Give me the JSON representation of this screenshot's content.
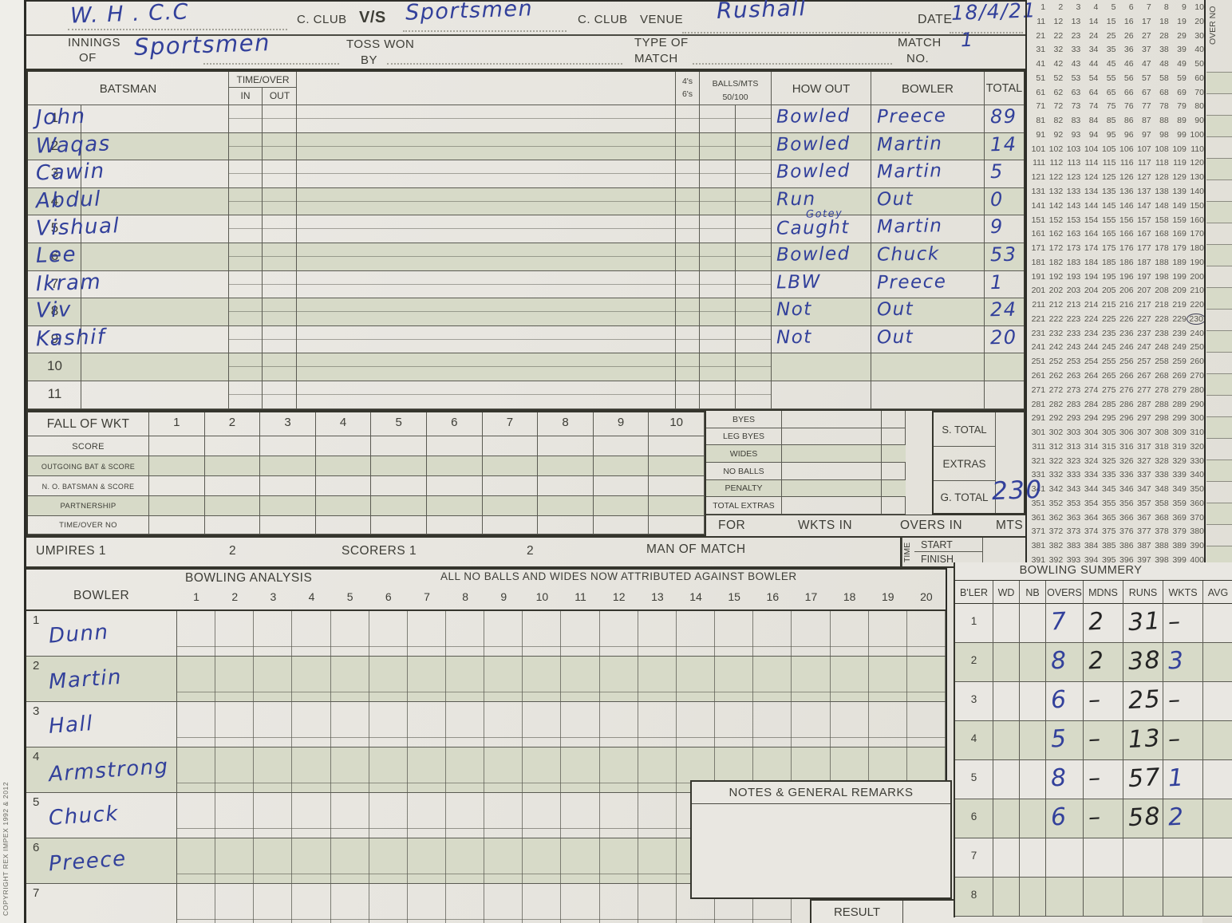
{
  "header": {
    "club_home": "W. H . C.C",
    "c_club": "C. CLUB",
    "vs": "V/S",
    "club_away": "Sportsmen",
    "venue_label": "VENUE",
    "venue": "Rushall",
    "date_label": "DATE",
    "date": "18/4/21",
    "innings_label_1": "INNINGS",
    "innings_label_2": "OF",
    "innings_of": "Sportsmen",
    "toss_label_1": "TOSS WON",
    "toss_label_2": "BY",
    "type_label_1": "TYPE OF",
    "type_label_2": "MATCH",
    "match_no_label_1": "MATCH",
    "match_no_label_2": "NO.",
    "match_no": "1"
  },
  "batting": {
    "col_batsman": "BATSMAN",
    "col_time_over": "TIME/OVER",
    "col_in": "IN",
    "col_out": "OUT",
    "col_4s": "4's",
    "col_6s": "6's",
    "col_balls_1": "BALLS/MTS",
    "col_balls_2": "50/100",
    "col_how_out": "HOW OUT",
    "col_bowler": "BOWLER",
    "col_total": "TOTAL",
    "rows": [
      {
        "no": "1",
        "name": "John",
        "how_out": "Bowled",
        "how_out_note": "",
        "bowler": "Preece",
        "total": "89"
      },
      {
        "no": "2",
        "name": "Waqas",
        "how_out": "Bowled",
        "how_out_note": "",
        "bowler": "Martin",
        "total": "14"
      },
      {
        "no": "3",
        "name": "Cawin",
        "how_out": "Bowled",
        "how_out_note": "",
        "bowler": "Martin",
        "total": "5"
      },
      {
        "no": "4",
        "name": "Abdul",
        "how_out": "Run",
        "how_out_note": "",
        "bowler": "Out",
        "total": "0"
      },
      {
        "no": "5",
        "name": "Vishual",
        "how_out": "Caught",
        "how_out_note": "Gotey",
        "bowler": "Martin",
        "total": "9"
      },
      {
        "no": "6",
        "name": "Lee",
        "how_out": "Bowled",
        "how_out_note": "",
        "bowler": "Chuck",
        "total": "53"
      },
      {
        "no": "7",
        "name": "Ikram",
        "how_out": "LBW",
        "how_out_note": "",
        "bowler": "Preece",
        "total": "1"
      },
      {
        "no": "8",
        "name": "Viv",
        "how_out": "Not",
        "how_out_note": "",
        "bowler": "Out",
        "total": "24"
      },
      {
        "no": "9",
        "name": "Kashif",
        "how_out": "Not",
        "how_out_note": "",
        "bowler": "Out",
        "total": "20"
      },
      {
        "no": "10",
        "name": "",
        "how_out": "",
        "how_out_note": "",
        "bowler": "",
        "total": ""
      },
      {
        "no": "11",
        "name": "",
        "how_out": "",
        "how_out_note": "",
        "bowler": "",
        "total": ""
      }
    ]
  },
  "fall_of_wkt": {
    "title": "FALL OF WKT",
    "columns": [
      "1",
      "2",
      "3",
      "4",
      "5",
      "6",
      "7",
      "8",
      "9",
      "10"
    ],
    "row_labels": [
      "SCORE",
      "OUTGOING BAT & SCORE",
      "N. O. BATSMAN & SCORE",
      "PARTNERSHIP",
      "TIME/OVER NO"
    ]
  },
  "extras": {
    "rows": [
      "BYES",
      "LEG BYES",
      "WIDES",
      "NO BALLS",
      "PENALTY",
      "TOTAL EXTRAS"
    ]
  },
  "totals": {
    "s_total_label": "S. TOTAL",
    "extras_label": "EXTRAS",
    "g_total_label": "G. TOTAL",
    "g_total_value": "230"
  },
  "for_row": {
    "for_label": "FOR",
    "wkts_in": "WKTS IN",
    "overs_in": "OVERS IN",
    "mts": "MTS"
  },
  "officials": {
    "umpires": "UMPIRES 1",
    "umpire2": "2",
    "scorers": "SCORERS 1",
    "scorer2": "2",
    "man_of_match": "MAN OF MATCH",
    "time": "TIME",
    "start": "START",
    "finish": "FINISH"
  },
  "bowling": {
    "title": "BOWLING ANALYSIS",
    "note": "ALL NO BALLS AND WIDES NOW ATTRIBUTED AGAINST BOWLER",
    "bowler_label": "BOWLER",
    "over_columns": [
      "1",
      "2",
      "3",
      "4",
      "5",
      "6",
      "7",
      "8",
      "9",
      "10",
      "11",
      "12",
      "13",
      "14",
      "15",
      "16",
      "17",
      "18",
      "19",
      "20"
    ],
    "rows": [
      {
        "no": "1",
        "name": "Dunn"
      },
      {
        "no": "2",
        "name": "Martin"
      },
      {
        "no": "3",
        "name": "Hall"
      },
      {
        "no": "4",
        "name": "Armstrong"
      },
      {
        "no": "5",
        "name": "Chuck"
      },
      {
        "no": "6",
        "name": "Preece"
      },
      {
        "no": "7",
        "name": ""
      }
    ]
  },
  "bowling_summary": {
    "title": "BOWLING SUMMERY",
    "headers": [
      "B'LER",
      "WD",
      "NB",
      "OVERS",
      "MDNS",
      "RUNS",
      "WKTS",
      "AVG"
    ],
    "rows": [
      {
        "no": "1",
        "wd": "",
        "nb": "",
        "overs": "7",
        "mdns": "2",
        "runs": "31",
        "wkts": "–",
        "avg": ""
      },
      {
        "no": "2",
        "wd": "",
        "nb": "",
        "overs": "8",
        "mdns": "2",
        "runs": "38",
        "wkts": "3",
        "avg": ""
      },
      {
        "no": "3",
        "wd": "",
        "nb": "",
        "overs": "6",
        "mdns": "–",
        "runs": "25",
        "wkts": "–",
        "avg": ""
      },
      {
        "no": "4",
        "wd": "",
        "nb": "",
        "overs": "5",
        "mdns": "–",
        "runs": "13",
        "wkts": "–",
        "avg": ""
      },
      {
        "no": "5",
        "wd": "",
        "nb": "",
        "overs": "8",
        "mdns": "–",
        "runs": "57",
        "wkts": "1",
        "avg": ""
      },
      {
        "no": "6",
        "wd": "",
        "nb": "",
        "overs": "6",
        "mdns": "–",
        "runs": "58",
        "wkts": "2",
        "avg": ""
      },
      {
        "no": "7",
        "wd": "",
        "nb": "",
        "overs": "",
        "mdns": "",
        "runs": "",
        "wkts": "",
        "avg": ""
      },
      {
        "no": "8",
        "wd": "",
        "nb": "",
        "overs": "",
        "mdns": "",
        "runs": "",
        "wkts": "",
        "avg": ""
      }
    ]
  },
  "notes": {
    "title": "NOTES & GENERAL REMARKS"
  },
  "result": {
    "label": "RESULT"
  },
  "tally": {
    "start": 1,
    "end": 400,
    "per_row": 10,
    "circled": 230,
    "over_no_label": "OVER NO"
  },
  "copyright": "COPYRIGHT REX IMPEX 1992 & 2012",
  "colors": {
    "ink_blue": "#32409b",
    "ink_black": "#232323",
    "shade_green": "#d7dac8",
    "paper": "#e8e6e1"
  }
}
